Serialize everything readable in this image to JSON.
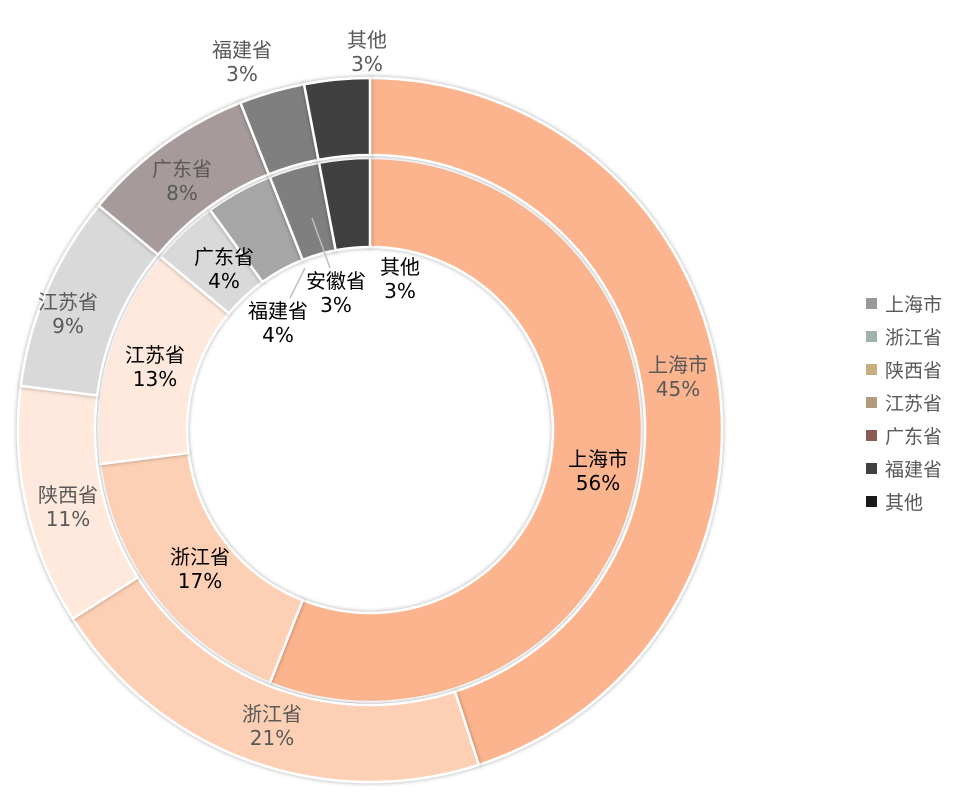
{
  "chart_data": {
    "type": "doughnut",
    "title": "",
    "series": [
      {
        "name": "inner",
        "slices": [
          {
            "label": "上海市",
            "value": 56,
            "pct_text": "56%",
            "color": "#fbb48e"
          },
          {
            "label": "浙江省",
            "value": 17,
            "pct_text": "17%",
            "color": "#fdd0b5"
          },
          {
            "label": "江苏省",
            "value": 13,
            "pct_text": "13%",
            "color": "#fee9dc"
          },
          {
            "label": "广东省",
            "value": 4,
            "pct_text": "4%",
            "color": "#d9d9d9"
          },
          {
            "label": "福建省",
            "value": 4,
            "pct_text": "4%",
            "color": "#a6a6a6"
          },
          {
            "label": "安徽省",
            "value": 3,
            "pct_text": "3%",
            "color": "#7f7f7f"
          },
          {
            "label": "其他",
            "value": 3,
            "pct_text": "3%",
            "color": "#3f3f3f"
          }
        ]
      },
      {
        "name": "outer",
        "slices": [
          {
            "label": "上海市",
            "value": 45,
            "pct_text": "45%",
            "color": "#fbb48e"
          },
          {
            "label": "浙江省",
            "value": 21,
            "pct_text": "21%",
            "color": "#fdd0b5"
          },
          {
            "label": "陕西省",
            "value": 11,
            "pct_text": "11%",
            "color": "#fee9dc"
          },
          {
            "label": "江苏省",
            "value": 9,
            "pct_text": "9%",
            "color": "#d9d9d9"
          },
          {
            "label": "广东省",
            "value": 8,
            "pct_text": "8%",
            "color": "#a79a9a"
          },
          {
            "label": "福建省",
            "value": 3,
            "pct_text": "3%",
            "color": "#7f7f7f"
          },
          {
            "label": "其他",
            "value": 3,
            "pct_text": "3%",
            "color": "#3f3f3f"
          }
        ]
      }
    ],
    "legend": {
      "position": "right",
      "items": [
        {
          "label": "上海市",
          "color": "#999999"
        },
        {
          "label": "浙江省",
          "color": "#9fb3ad"
        },
        {
          "label": "陕西省",
          "color": "#c8ad80"
        },
        {
          "label": "江苏省",
          "color": "#b19a7e"
        },
        {
          "label": "广东省",
          "color": "#8b5a55"
        },
        {
          "label": "福建省",
          "color": "#404040"
        },
        {
          "label": "其他",
          "color": "#1a1a1a"
        }
      ]
    }
  }
}
